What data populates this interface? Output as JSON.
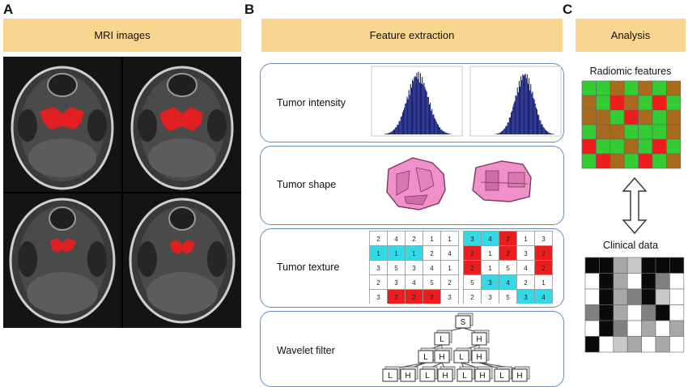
{
  "panels": {
    "a": {
      "letter": "A",
      "header": "MRI images"
    },
    "b": {
      "letter": "B",
      "header": "Feature extraction"
    },
    "c": {
      "letter": "C",
      "header": "Analysis"
    }
  },
  "features": {
    "intensity": "Tumor intensity",
    "shape": "Tumor shape",
    "texture": "Tumor texture",
    "wavelet": "Wavelet filter"
  },
  "glcm": {
    "left": [
      [
        "2",
        "4",
        "2",
        "1",
        "1"
      ],
      [
        "1",
        "1",
        "1",
        "2",
        "4"
      ],
      [
        "3",
        "5",
        "3",
        "4",
        "1"
      ],
      [
        "2",
        "3",
        "4",
        "5",
        "2"
      ],
      [
        "3",
        "2",
        "2",
        "2",
        "3"
      ]
    ],
    "left_highlight": [
      [
        "n",
        "n",
        "n",
        "n",
        "n"
      ],
      [
        "c",
        "c",
        "c",
        "n",
        "n"
      ],
      [
        "n",
        "n",
        "n",
        "n",
        "n"
      ],
      [
        "n",
        "n",
        "n",
        "n",
        "n"
      ],
      [
        "n",
        "r",
        "r",
        "r",
        "n"
      ]
    ],
    "right": [
      [
        "3",
        "4",
        "2",
        "1",
        "3"
      ],
      [
        "2",
        "1",
        "2",
        "3",
        "2"
      ],
      [
        "2",
        "1",
        "5",
        "4",
        "2"
      ],
      [
        "5",
        "3",
        "4",
        "2",
        "1"
      ],
      [
        "2",
        "3",
        "5",
        "3",
        "4"
      ]
    ],
    "right_highlight": [
      [
        "c",
        "c",
        "r",
        "n",
        "n"
      ],
      [
        "r",
        "n",
        "r",
        "n",
        "r"
      ],
      [
        "r",
        "n",
        "n",
        "n",
        "r"
      ],
      [
        "n",
        "c",
        "c",
        "n",
        "n"
      ],
      [
        "n",
        "n",
        "n",
        "c",
        "c"
      ]
    ]
  },
  "wavelet_tree": {
    "root": "S",
    "level1": [
      "L",
      "H"
    ],
    "level2": [
      "L",
      "H",
      "L",
      "H"
    ],
    "level3": [
      "L",
      "H",
      "L",
      "H",
      "L",
      "H",
      "L",
      "H"
    ]
  },
  "analysis": {
    "radiomic_title": "Radiomic features",
    "clinical_title": "Clinical data",
    "radiomic_grid": [
      [
        "g",
        "g",
        "o",
        "g",
        "o",
        "g",
        "o"
      ],
      [
        "o",
        "g",
        "r",
        "o",
        "g",
        "r",
        "g"
      ],
      [
        "o",
        "o",
        "g",
        "r",
        "o",
        "g",
        "o"
      ],
      [
        "g",
        "o",
        "o",
        "g",
        "g",
        "g",
        "o"
      ],
      [
        "r",
        "g",
        "g",
        "o",
        "g",
        "r",
        "g"
      ],
      [
        "g",
        "r",
        "o",
        "g",
        "r",
        "g",
        "o"
      ]
    ],
    "radiomic_colors": {
      "g": "#33cc33",
      "o": "#a86a1c",
      "r": "#ee1c1c"
    },
    "clinical_grid": [
      [
        "k",
        "k",
        "m",
        "l",
        "k",
        "k",
        "k"
      ],
      [
        "w",
        "k",
        "m",
        "w",
        "k",
        "d",
        "w"
      ],
      [
        "w",
        "k",
        "m",
        "d",
        "k",
        "l",
        "w"
      ],
      [
        "d",
        "k",
        "m",
        "w",
        "d",
        "k",
        "w"
      ],
      [
        "w",
        "k",
        "d",
        "w",
        "m",
        "w",
        "m"
      ],
      [
        "k",
        "w",
        "l",
        "m",
        "w",
        "m",
        "w"
      ]
    ],
    "clinical_colors": {
      "k": "#0a0a0a",
      "d": "#808080",
      "m": "#a8a8a8",
      "l": "#c8c8c8",
      "w": "#ffffff"
    }
  }
}
